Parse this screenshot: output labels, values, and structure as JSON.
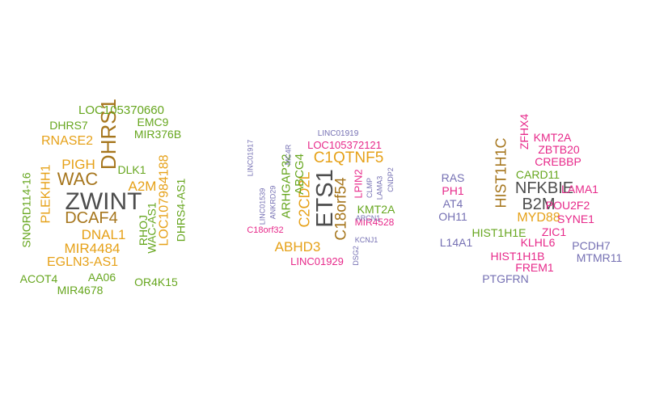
{
  "colors": {
    "dark": "#4d4d4d",
    "brown": "#a6761d",
    "orange": "#e6a118",
    "green": "#66a61e",
    "pink": "#e7298a",
    "purple": "#7570b3"
  },
  "clouds": [
    {
      "words": [
        {
          "text": "ZWINT",
          "color": "dark"
        },
        {
          "text": "DHRS1",
          "color": "brown"
        },
        {
          "text": "WAC",
          "color": "brown"
        },
        {
          "text": "DCAF4",
          "color": "brown"
        },
        {
          "text": "PIGH",
          "color": "orange"
        },
        {
          "text": "A2M",
          "color": "orange"
        },
        {
          "text": "DNAL1",
          "color": "orange"
        },
        {
          "text": "MIR4484",
          "color": "orange"
        },
        {
          "text": "RNASE2",
          "color": "orange"
        },
        {
          "text": "EGLN3-AS1",
          "color": "orange"
        },
        {
          "text": "PLEKHH1",
          "color": "orange"
        },
        {
          "text": "LOC107984188",
          "color": "orange"
        },
        {
          "text": "LOC105370660",
          "color": "green"
        },
        {
          "text": "EMC9",
          "color": "green"
        },
        {
          "text": "DHRS7",
          "color": "green"
        },
        {
          "text": "MIR376B",
          "color": "green"
        },
        {
          "text": "DLK1",
          "color": "green"
        },
        {
          "text": "SNORD114-16",
          "color": "green"
        },
        {
          "text": "RHOJ",
          "color": "green"
        },
        {
          "text": "WAC-AS1",
          "color": "green"
        },
        {
          "text": "DHRS4-AS1",
          "color": "green"
        },
        {
          "text": "ACOT4",
          "color": "green"
        },
        {
          "text": "AA06",
          "color": "green"
        },
        {
          "text": "OR4K15",
          "color": "green"
        },
        {
          "text": "MIR4678",
          "color": "green"
        }
      ]
    },
    {
      "words": [
        {
          "text": "ETS1",
          "color": "dark"
        },
        {
          "text": "C1QTNF5",
          "color": "orange"
        },
        {
          "text": "C18orf54",
          "color": "brown"
        },
        {
          "text": "C2CD2L",
          "color": "orange"
        },
        {
          "text": "ABHD3",
          "color": "orange"
        },
        {
          "text": "ARHGAP32",
          "color": "green"
        },
        {
          "text": "ABCG4",
          "color": "green"
        },
        {
          "text": "KMT2A",
          "color": "green"
        },
        {
          "text": "LOC105372121",
          "color": "pink"
        },
        {
          "text": "LPIN2",
          "color": "pink"
        },
        {
          "text": "MIR4528",
          "color": "pink"
        },
        {
          "text": "LINC01929",
          "color": "pink"
        },
        {
          "text": "C18orf32",
          "color": "pink"
        },
        {
          "text": "LINC01919",
          "color": "purple"
        },
        {
          "text": "LINC01917",
          "color": "purple"
        },
        {
          "text": "LINC01539",
          "color": "purple"
        },
        {
          "text": "ANKRD29",
          "color": "purple"
        },
        {
          "text": "MC4R",
          "color": "purple"
        },
        {
          "text": "CLMP",
          "color": "purple"
        },
        {
          "text": "LAMA3",
          "color": "purple"
        },
        {
          "text": "CNDP2",
          "color": "purple"
        },
        {
          "text": "ARCN1",
          "color": "purple"
        },
        {
          "text": "KCNJ1",
          "color": "purple"
        },
        {
          "text": "DSG2",
          "color": "purple"
        }
      ]
    },
    {
      "words": [
        {
          "text": "NFKBIE",
          "color": "dark"
        },
        {
          "text": "B2M",
          "color": "dark"
        },
        {
          "text": "HIST1H1C",
          "color": "brown"
        },
        {
          "text": "MYD88",
          "color": "orange"
        },
        {
          "text": "ZFHX4",
          "color": "pink"
        },
        {
          "text": "KMT2A",
          "color": "pink"
        },
        {
          "text": "ZBTB20",
          "color": "pink"
        },
        {
          "text": "CREBBP",
          "color": "pink"
        },
        {
          "text": "LAMA1",
          "color": "pink"
        },
        {
          "text": "POU2F2",
          "color": "pink"
        },
        {
          "text": "SYNE1",
          "color": "pink"
        },
        {
          "text": "ZIC1",
          "color": "pink"
        },
        {
          "text": "KLHL6",
          "color": "pink"
        },
        {
          "text": "HIST1H1B",
          "color": "pink"
        },
        {
          "text": "FREM1",
          "color": "pink"
        },
        {
          "text": "PH1",
          "color": "pink"
        },
        {
          "text": "CARD11",
          "color": "green"
        },
        {
          "text": "HIST1H1E",
          "color": "green"
        },
        {
          "text": "RAS",
          "color": "purple"
        },
        {
          "text": "AT4",
          "color": "purple"
        },
        {
          "text": "OH11",
          "color": "purple"
        },
        {
          "text": "L14A1",
          "color": "purple"
        },
        {
          "text": "PCDH7",
          "color": "purple"
        },
        {
          "text": "MTMR11",
          "color": "purple"
        },
        {
          "text": "PTGFRN",
          "color": "purple"
        }
      ]
    }
  ]
}
